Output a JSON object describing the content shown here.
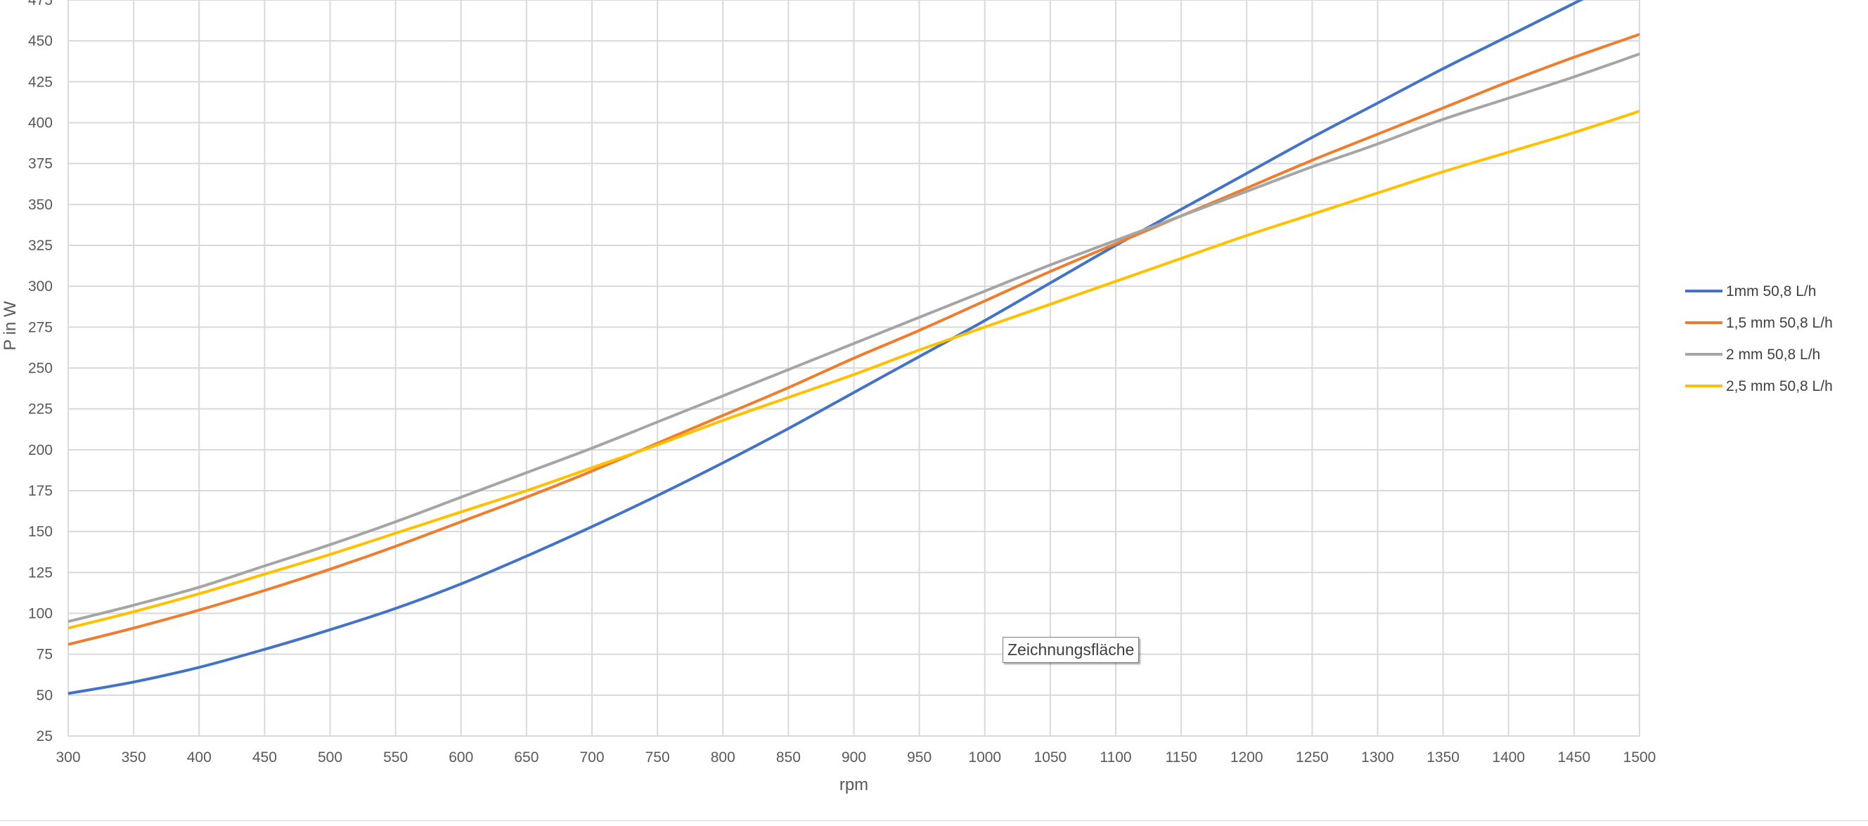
{
  "tooltip": "Zeichnungsfläche",
  "chart_data": {
    "type": "line",
    "title": "",
    "xlabel": "rpm",
    "ylabel": "P in W",
    "xlim": [
      300,
      1500
    ],
    "ylim": [
      25,
      475
    ],
    "x_ticks": [
      300,
      350,
      400,
      450,
      500,
      550,
      600,
      650,
      700,
      750,
      800,
      850,
      900,
      950,
      1000,
      1050,
      1100,
      1150,
      1200,
      1250,
      1300,
      1350,
      1400,
      1450,
      1500
    ],
    "y_ticks": [
      25,
      50,
      75,
      100,
      125,
      150,
      175,
      200,
      225,
      250,
      275,
      300,
      325,
      350,
      375,
      400,
      425,
      450,
      475
    ],
    "grid": true,
    "legend_position": "right",
    "x": [
      300,
      350,
      400,
      450,
      500,
      550,
      600,
      650,
      700,
      750,
      800,
      850,
      900,
      950,
      1000,
      1050,
      1100,
      1150,
      1200,
      1250,
      1300,
      1350,
      1400,
      1450,
      1500
    ],
    "series": [
      {
        "name": "1mm 50,8 L/h",
        "color": "#4472C4",
        "values": [
          51,
          58,
          67,
          78,
          90,
          103,
          118,
          135,
          153,
          172,
          192,
          213,
          235,
          257,
          279,
          302,
          325,
          347,
          369,
          391,
          412,
          433,
          453,
          473,
          493
        ]
      },
      {
        "name": "1,5 mm 50,8 L/h",
        "color": "#ED7D31",
        "values": [
          81,
          91,
          102,
          114,
          127,
          141,
          156,
          171,
          187,
          204,
          221,
          238,
          256,
          273,
          291,
          309,
          326,
          343,
          360,
          377,
          393,
          409,
          425,
          440,
          454
        ]
      },
      {
        "name": "2 mm 50,8 L/h",
        "color": "#A5A5A5",
        "values": [
          95,
          105,
          116,
          129,
          142,
          156,
          171,
          186,
          201,
          217,
          233,
          249,
          265,
          281,
          297,
          313,
          328,
          343,
          358,
          373,
          387,
          402,
          415,
          428,
          442
        ]
      },
      {
        "name": "2,5 mm 50,8 L/h",
        "color": "#FFC000",
        "values": [
          91,
          101,
          112,
          124,
          136,
          149,
          162,
          175,
          189,
          203,
          218,
          232,
          246,
          261,
          275,
          289,
          303,
          317,
          331,
          344,
          357,
          370,
          382,
          394,
          407
        ]
      }
    ]
  }
}
